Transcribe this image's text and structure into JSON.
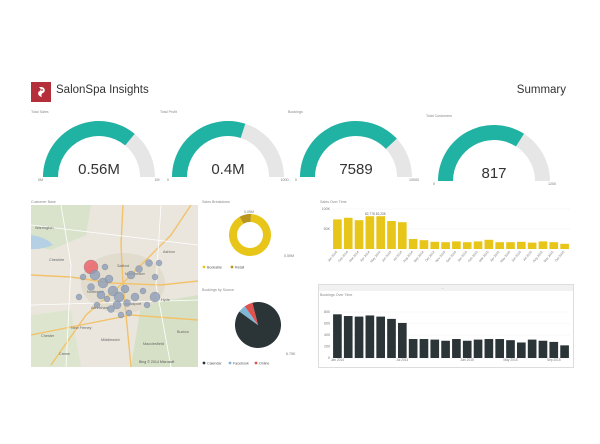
{
  "header": {
    "app_title": "SalonSpa Insights",
    "page_title": "Summary"
  },
  "gauges": [
    {
      "label": "Total Sales",
      "value_text": "0.56M",
      "fraction": 0.72,
      "min": "0M",
      "max": "1M"
    },
    {
      "label": "Total Profit",
      "value_text": "0.4M",
      "fraction": 0.6,
      "min": "0",
      "max": "1000..."
    },
    {
      "label": "Bookings",
      "value_text": "7589",
      "fraction": 0.76,
      "min": "0",
      "max": "10000"
    },
    {
      "label": "Total Customers",
      "value_text": "817",
      "fraction": 0.68,
      "min": "0",
      "max": "1200"
    }
  ],
  "map": {
    "label": "Customer Base",
    "places": [
      "Warrington",
      "Cheshire",
      "Salford",
      "Manchester",
      "Ashton",
      "Hyde",
      "Stockport",
      "Altrincham",
      "Chester",
      "Crewe",
      "Middlewich",
      "Macclesfield",
      "Buxton",
      "New Ferney",
      "Northwich"
    ],
    "attribution": "Bing  © 2014 Microsoft"
  },
  "donut": {
    "label": "Sales Breakdown",
    "top_label": "0.05M",
    "side_label": "0.50M",
    "legend": [
      {
        "name": "Bookable",
        "color": "#e8c619"
      },
      {
        "name": "Retail",
        "color": "#b9951d"
      }
    ],
    "colors": {
      "primary": "#e8c619",
      "secondary": "#b9951d"
    }
  },
  "pie": {
    "label": "Bookings by Source",
    "side_label": "6.75K",
    "legend": [
      {
        "name": "Calendar",
        "color": "#2b3437"
      },
      {
        "name": "Facebook",
        "color": "#7eb8d6"
      },
      {
        "name": "Online",
        "color": "#e0524e"
      }
    ]
  },
  "sales_chart": {
    "label": "Sales Over Time",
    "y_ticks": [
      "100K",
      "50K"
    ],
    "color": "#e8c619"
  },
  "bookings_chart": {
    "label": "Bookings Over Time",
    "toolbar": "...",
    "y_ticks": [
      "800",
      "600",
      "400",
      "200",
      "0"
    ],
    "color": "#2b3437"
  },
  "chart_data": [
    {
      "type": "bar",
      "title": "Sales Over Time",
      "categories": [
        "Jan 2014",
        "Feb 2014",
        "Mar 2014",
        "Apr 2014",
        "May 2014",
        "Jun 2014",
        "Jul 2014",
        "Aug 2014",
        "Sep 2014",
        "Oct 2014",
        "Nov 2014",
        "Dec 2014",
        "Jan 2015",
        "Feb 2015",
        "Mar 2015",
        "Apr 2015",
        "May 2015",
        "Jun 2015",
        "Jul 2015",
        "Aug 2015",
        "Sep 2015",
        "Oct 2015"
      ],
      "values": [
        74,
        78,
        72,
        82,
        82,
        70,
        67,
        25,
        22,
        18,
        17,
        19,
        17,
        19,
        23,
        17,
        17,
        18,
        16,
        19,
        17,
        13
      ],
      "data_labels": [
        "",
        "",
        "",
        "82,778",
        "82,208",
        "",
        "",
        "",
        "",
        "",
        "",
        "",
        "",
        "",
        "",
        "",
        "",
        "",
        "",
        "",
        "",
        ""
      ],
      "ylim": [
        0,
        100
      ]
    },
    {
      "type": "bar",
      "title": "Bookings Over Time",
      "categories": [
        "Jan 2014",
        "Feb 2014",
        "Mar 2014",
        "Apr 2014",
        "May 2014",
        "Jun 2014",
        "Jul 2014",
        "Aug 2014",
        "Sep 2014",
        "Oct 2014",
        "Nov 2014",
        "Dec 2014",
        "Jan 2015",
        "Feb 2015",
        "Mar 2015",
        "Apr 2015",
        "May 2015",
        "Jun 2015",
        "Jul 2015",
        "Aug 2015",
        "Sep 2015",
        "Oct 2015"
      ],
      "values": [
        760,
        730,
        720,
        740,
        720,
        680,
        610,
        330,
        330,
        320,
        300,
        330,
        300,
        320,
        330,
        330,
        310,
        270,
        320,
        300,
        280,
        220
      ],
      "ylim": [
        0,
        800
      ]
    },
    {
      "type": "pie",
      "title": "Sales Breakdown",
      "categories": [
        "Bookable",
        "Retail"
      ],
      "values": [
        0.5,
        0.05
      ]
    },
    {
      "type": "pie",
      "title": "Bookings by Source",
      "categories": [
        "Calendar",
        "Facebook",
        "Online"
      ],
      "values": [
        6750,
        400,
        439
      ]
    }
  ]
}
